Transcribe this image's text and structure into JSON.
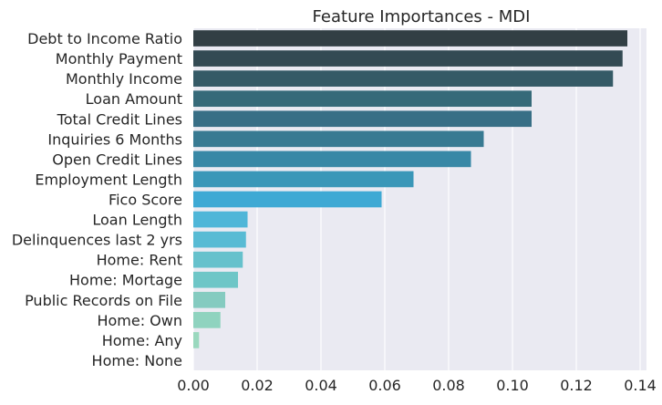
{
  "chart_data": {
    "type": "bar",
    "orientation": "horizontal",
    "title": "Feature Importances - MDI",
    "xlabel": "",
    "ylabel": "",
    "xlim": [
      0,
      0.142
    ],
    "x_ticks": [
      0.0,
      0.02,
      0.04,
      0.06,
      0.08,
      0.1,
      0.12,
      0.14
    ],
    "x_tick_labels": [
      "0.00",
      "0.02",
      "0.04",
      "0.06",
      "0.08",
      "0.10",
      "0.12",
      "0.14"
    ],
    "grid": "vertical",
    "legend": "none",
    "categories": [
      "Debt to Income Ratio",
      "Monthly Payment",
      "Monthly Income",
      "Loan Amount",
      "Total Credit Lines",
      "Inquiries 6 Months",
      "Open Credit Lines",
      "Employment Length",
      "Fico Score",
      "Loan Length",
      "Delinquences last 2 yrs",
      "Home: Rent",
      "Home: Mortage",
      "Public Records on File",
      "Home: Own",
      "Home: Any",
      "Home: None"
    ],
    "values": [
      0.136,
      0.1345,
      0.1315,
      0.106,
      0.106,
      0.091,
      0.087,
      0.069,
      0.059,
      0.017,
      0.0165,
      0.0155,
      0.014,
      0.01,
      0.0085,
      0.0018,
      0.0
    ],
    "colors": [
      "#323f44",
      "#334a53",
      "#355a66",
      "#366a79",
      "#386f86",
      "#387a92",
      "#3888a6",
      "#3a97b8",
      "#3ea9d4",
      "#4fb6d8",
      "#58bbd4",
      "#66c1cc",
      "#6ec6c7",
      "#85cbc0",
      "#8fd3bf",
      "#9ad8be",
      "#a8ddbf"
    ],
    "plot_background": "#eaeaf2",
    "grid_color": "#ffffff"
  }
}
